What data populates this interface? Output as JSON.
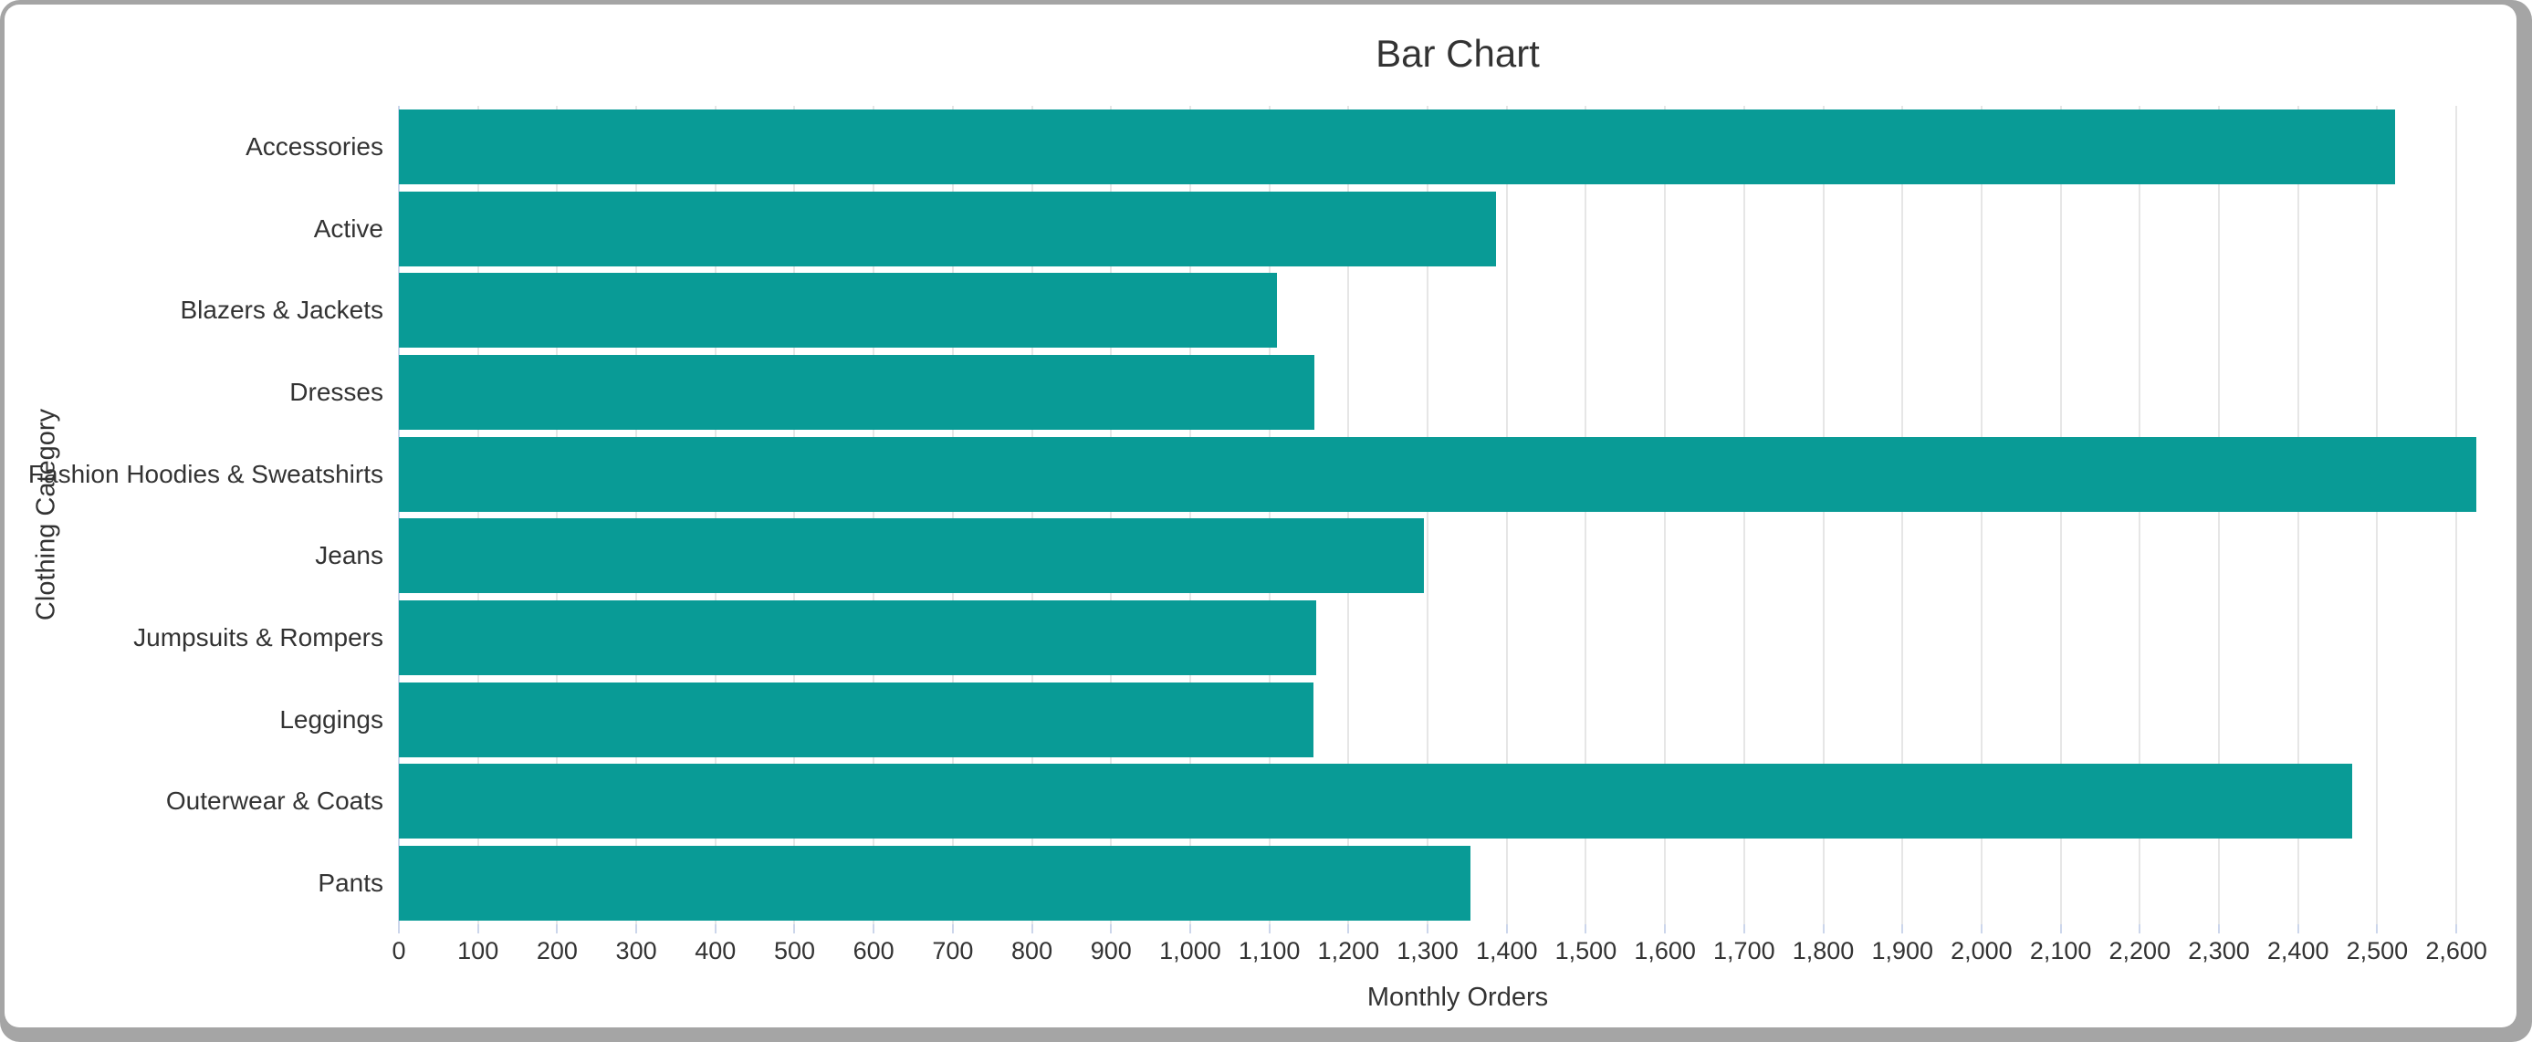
{
  "window": {
    "background": "#ffffff",
    "frame_border_color": "#a5a5a5",
    "panel_background": "#ffffff"
  },
  "chart_data": {
    "type": "bar",
    "orientation": "horizontal",
    "title": "Bar Chart",
    "xlabel": "Monthly Orders",
    "ylabel": "Clothing Category",
    "categories": [
      "Accessories",
      "Active",
      "Blazers & Jackets",
      "Dresses",
      "Fashion Hoodies & Sweatshirts",
      "Jeans",
      "Jumpsuits & Rompers",
      "Leggings",
      "Outerwear & Coats",
      "Pants"
    ],
    "series": [
      {
        "name": "Monthly Orders",
        "values": [
          2523,
          1386,
          1110,
          1157,
          2625,
          1295,
          1159,
          1156,
          2468,
          1354
        ]
      }
    ],
    "xlim": [
      0,
      2676
    ],
    "xtick_step": 100,
    "xticklabels": [
      "0",
      "100",
      "200",
      "300",
      "400",
      "500",
      "600",
      "700",
      "800",
      "900",
      "1,000",
      "1,100",
      "1,200",
      "1,300",
      "1,400",
      "1,500",
      "1,600",
      "1,700",
      "1,800",
      "1,900",
      "2,000",
      "2,100",
      "2,200",
      "2,300",
      "2,400",
      "2,500",
      "2,600"
    ],
    "grid": "vertical-on",
    "legend": "none",
    "bar_color": "#099b96",
    "gridline_color": "#e6e6e6",
    "axis_line_color": "#ccd6eb",
    "tick_color": "#ccd6eb",
    "text_color": "#333333"
  }
}
